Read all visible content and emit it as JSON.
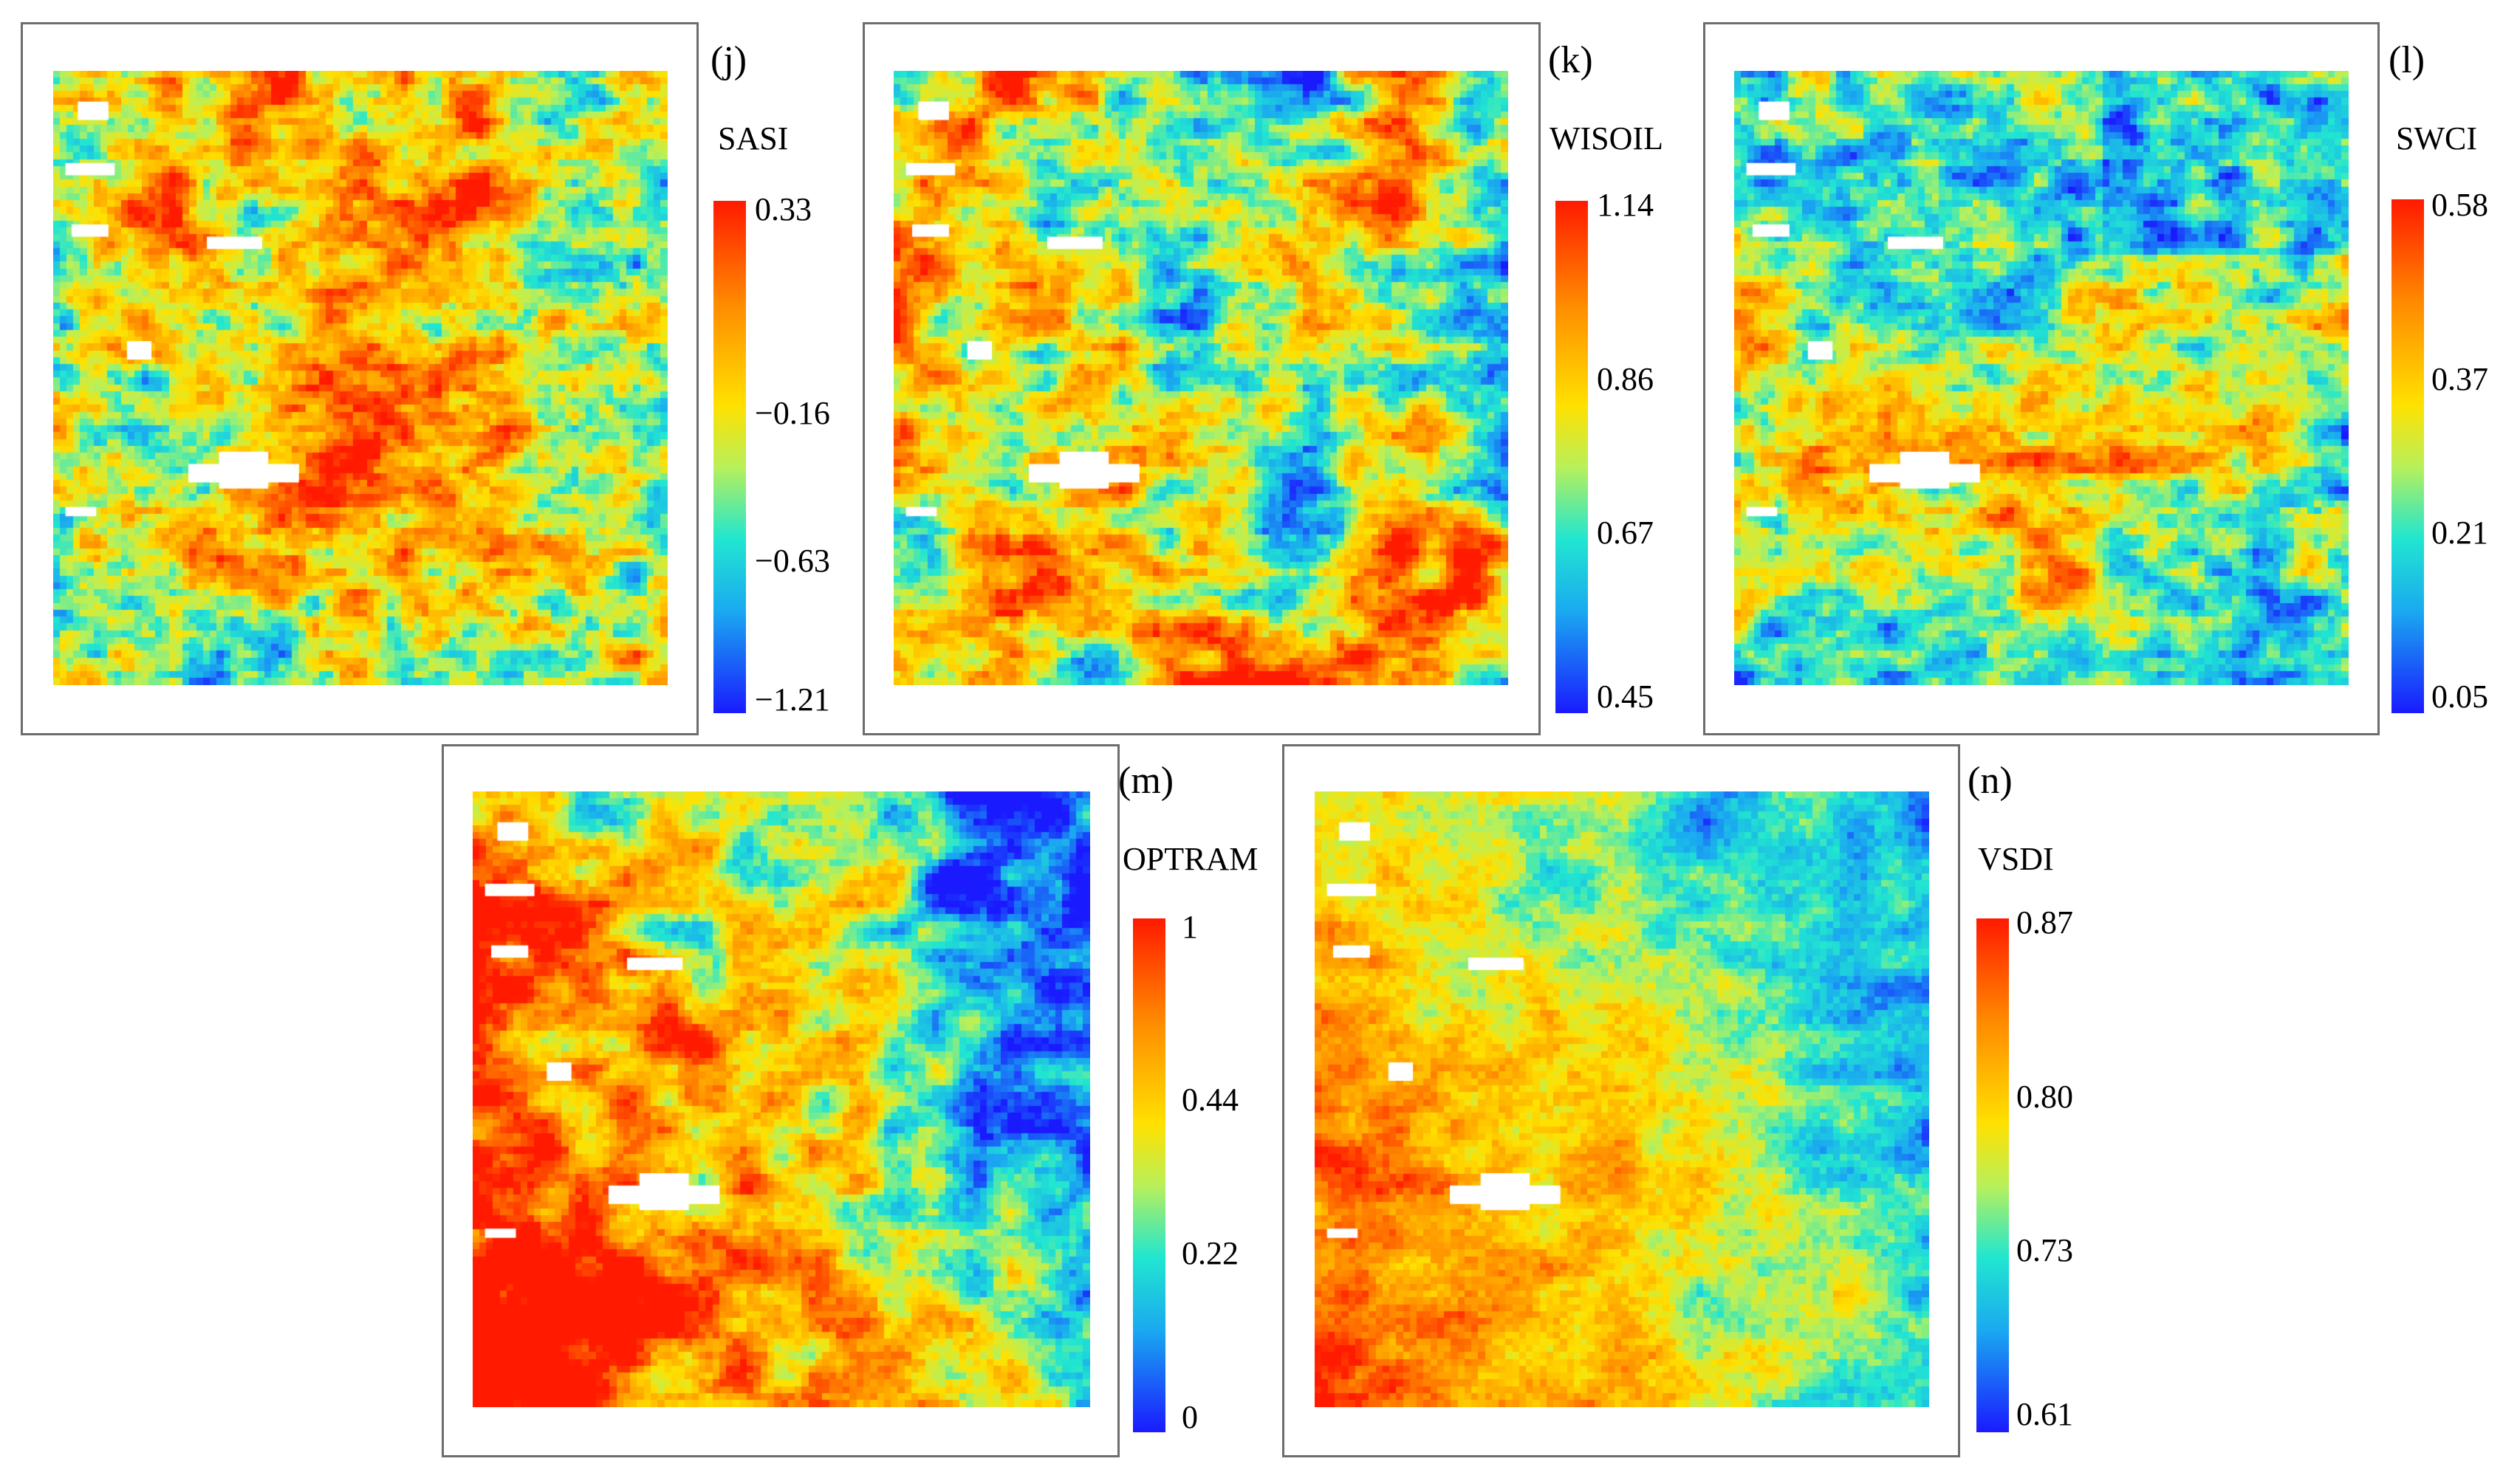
{
  "chart_data": [
    {
      "type": "heatmap",
      "panel": "(j)",
      "index": "SASI",
      "colorbar": {
        "colormap": "jet",
        "min": -1.21,
        "max": 0.33,
        "ticks": [
          "0.33",
          "−0.16",
          "−0.63",
          "−1.21"
        ],
        "tick_values": [
          0.33,
          -0.16,
          -0.63,
          -1.21
        ]
      }
    },
    {
      "type": "heatmap",
      "panel": "(k)",
      "index": "WISOIL",
      "colorbar": {
        "colormap": "jet_r",
        "min": 0.45,
        "max": 1.14,
        "ticks": [
          "1.14",
          "0.86",
          "0.67",
          "0.45"
        ],
        "tick_values": [
          1.14,
          0.86,
          0.67,
          0.45
        ]
      }
    },
    {
      "type": "heatmap",
      "panel": "(l)",
      "index": "SWCI",
      "colorbar": {
        "colormap": "jet_r",
        "min": 0.05,
        "max": 0.58,
        "ticks": [
          "0.58",
          "0.37",
          "0.21",
          "0.05"
        ],
        "tick_values": [
          0.58,
          0.37,
          0.21,
          0.05
        ]
      }
    },
    {
      "type": "heatmap",
      "panel": "(m)",
      "index": "OPTRAM",
      "colorbar": {
        "colormap": "jet_r",
        "min": 0,
        "max": 1,
        "ticks": [
          "1",
          "0.44",
          "0.22",
          "0"
        ],
        "tick_values": [
          1,
          0.44,
          0.22,
          0
        ]
      }
    },
    {
      "type": "heatmap",
      "panel": "(n)",
      "index": "VSDI",
      "colorbar": {
        "colormap": "jet_r",
        "min": 0.61,
        "max": 0.87,
        "ticks": [
          "0.87",
          "0.80",
          "0.73",
          "0.61"
        ],
        "tick_values": [
          0.87,
          0.8,
          0.73,
          0.61
        ]
      }
    }
  ]
}
